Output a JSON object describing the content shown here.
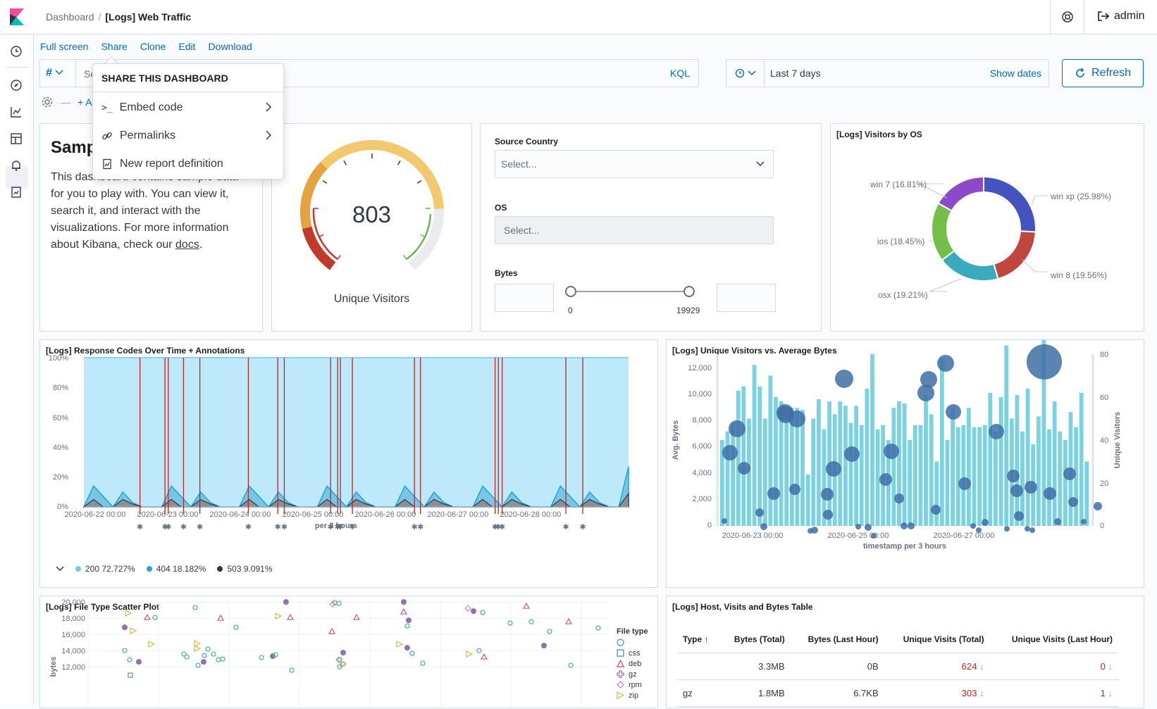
{
  "header": {
    "breadcrumb_parent": "Dashboard",
    "breadcrumb_current": "[Logs] Web Traffic",
    "user": "admin"
  },
  "topmenu": {
    "full_screen": "Full screen",
    "share": "Share",
    "clone": "Clone",
    "edit": "Edit",
    "download": "Download"
  },
  "query": {
    "lang_symbol": "#",
    "placeholder": "Search",
    "kql": "KQL",
    "date_range": "Last 7 days",
    "show_dates": "Show dates",
    "refresh": "Refresh",
    "add_filter": "+ Add filter"
  },
  "share_menu": {
    "title": "SHARE THIS DASHBOARD",
    "items": [
      "Embed code",
      "Permalinks",
      "New report definition"
    ]
  },
  "markdown": {
    "title": "Sample Logs Data",
    "text_before_link": "This dashboard contains sample data for you to play with. You can view it, search it, and interact with the visualizations. For more information about Kibana, check our ",
    "link": "docs",
    "text_after_link": "."
  },
  "gauge": {
    "value": "803",
    "label": "Unique Visitors",
    "max": 1000
  },
  "controls": {
    "source_country_label": "Source Country",
    "source_country_placeholder": "Select...",
    "os_label": "OS",
    "os_placeholder": "Select...",
    "bytes_label": "Bytes",
    "bytes_min": "0",
    "bytes_max": "19929"
  },
  "visitors_os": {
    "title": "[Logs] Visitors by OS",
    "slices": [
      {
        "label": "win xp (25.98%)",
        "value": 25.98,
        "color": "#4453bd"
      },
      {
        "label": "win 8 (19.56%)",
        "value": 19.56,
        "color": "#c0473e"
      },
      {
        "label": "osx (19.21%)",
        "value": 19.21,
        "color": "#3aabbd"
      },
      {
        "label": "ios (18.45%)",
        "value": 18.45,
        "color": "#73bf4a"
      },
      {
        "label": "win 7 (16.81%)",
        "value": 16.81,
        "color": "#8c49c9"
      }
    ]
  },
  "response_codes": {
    "title": "[Logs] Response Codes Over Time + Annotations",
    "y_ticks": [
      "100%",
      "80%",
      "60%",
      "40%",
      "20%",
      "0%"
    ],
    "x_ticks": [
      "2020-06-22 00:00",
      "2020-06-23 00:00",
      "2020-06-24 00:00",
      "2020-06-25 00:00",
      "2020-06-26 00:00",
      "2020-06-27 00:00",
      "2020-06-28 00:00"
    ],
    "x_label": "per 3 hours",
    "legend": [
      {
        "label": "200 72.727%",
        "color": "#6dccf1"
      },
      {
        "label": "404 18.182%",
        "color": "#1ea5d9"
      },
      {
        "label": "503 9.091%",
        "color": "#343741"
      }
    ],
    "annotations": [
      0.103,
      0.149,
      0.155,
      0.183,
      0.213,
      0.302,
      0.356,
      0.368,
      0.453,
      0.466,
      0.471,
      0.493,
      0.607,
      0.618,
      0.755,
      0.761,
      0.768,
      0.885,
      0.916
    ]
  },
  "unique_vs_bytes": {
    "title": "[Logs] Unique Visitors vs. Average Bytes",
    "y_left_label": "Avg. Bytes",
    "y_left_ticks": [
      "12,000",
      "10,000",
      "8,000",
      "6,000",
      "4,000",
      "2,000",
      "0"
    ],
    "y_right_label": "Unique Visitors",
    "y_right_ticks": [
      "80",
      "60",
      "40",
      "20",
      "0"
    ],
    "x_ticks": [
      "2020-06-23 00:00",
      "2020-06-25 00:00",
      "2020-06-27 00:00"
    ],
    "x_label": "timestamp per 3 hours"
  },
  "file_type": {
    "title": "[Logs] File Type Scatter Plot",
    "y_label": "bytes",
    "y_ticks": [
      "20,000",
      "18,000",
      "16,000",
      "14,000",
      "12,000"
    ],
    "legend_title": "File type",
    "legend": [
      {
        "label": "",
        "color": "#54b399"
      },
      {
        "label": "css",
        "color": "#6092c0"
      },
      {
        "label": "deb",
        "color": "#d36086"
      },
      {
        "label": "gz",
        "color": "#9170b8"
      },
      {
        "label": "rpm",
        "color": "#ca8eae"
      },
      {
        "label": "zip",
        "color": "#d6bf57"
      }
    ]
  },
  "host_table": {
    "title": "[Logs] Host, Visits and Bytes Table",
    "headers": [
      "Type",
      "Bytes (Total)",
      "Bytes (Last Hour)",
      "Unique Visits (Total)",
      "Unique Visits (Last Hour)"
    ],
    "rows": [
      [
        "",
        "3.3MB",
        "0B",
        "624",
        "0"
      ],
      [
        "gz",
        "1.8MB",
        "6.7KB",
        "303",
        "1"
      ]
    ]
  },
  "colors": {
    "accent": "#006bb8",
    "annotation": "#bd271e"
  }
}
